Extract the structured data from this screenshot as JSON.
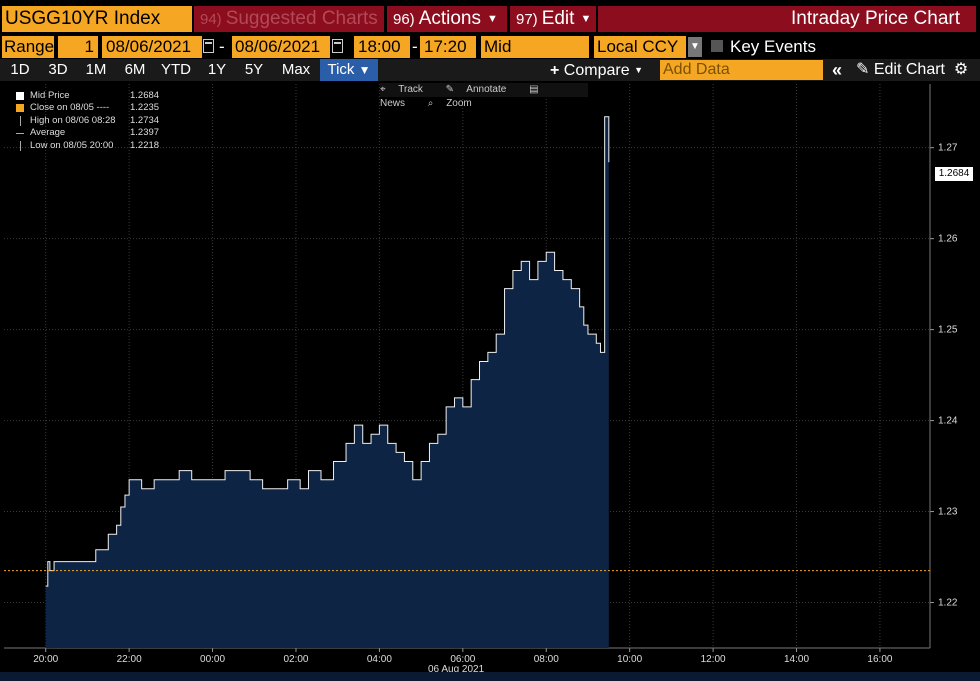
{
  "header": {
    "ticker": "USGG10YR Index",
    "tabs": [
      {
        "num": "94)",
        "label": "Suggested Charts"
      },
      {
        "num": "96)",
        "label": "Actions"
      },
      {
        "num": "97)",
        "label": "Edit"
      }
    ],
    "title": "Intraday Price Chart"
  },
  "range": {
    "label": "Range",
    "qty": "1",
    "start_date": "08/06/2021",
    "dash": "-",
    "end_date": "08/06/2021",
    "start_time": "18:00",
    "time_dash": "-",
    "end_time": "17:20",
    "price_type": "Mid",
    "currency": "Local CCY",
    "key_events": "Key Events"
  },
  "toolbar": {
    "periods": [
      "1D",
      "3D",
      "1M",
      "6M",
      "YTD",
      "1Y",
      "5Y",
      "Max"
    ],
    "active_period": "Tick",
    "active_caret": "▼",
    "compare": "Compare",
    "add_data_placeholder": "Add Data",
    "collapse": "«",
    "edit_chart": "Edit Chart",
    "settings_icon": "gear-icon"
  },
  "annotation_toolbar": [
    "Track",
    "Annotate",
    "News",
    "Zoom"
  ],
  "legend": [
    {
      "label": "Mid Price",
      "value": "1.2684",
      "symbol": "white-square"
    },
    {
      "label": "Close on 08/05 ----",
      "value": "1.2235",
      "symbol": "orange-square"
    },
    {
      "label": "High on 08/06 08:28",
      "value": "1.2734",
      "symbol": "high-marker"
    },
    {
      "label": "Average",
      "value": "1.2397",
      "symbol": "average-marker"
    },
    {
      "label": "Low on 08/05 20:00",
      "value": "1.2218",
      "symbol": "low-marker"
    }
  ],
  "current_value_box": "1.2684",
  "x_axis_date_label": "06 Aug 2021",
  "colors": {
    "accent_orange": "#f5a623",
    "header_red": "#8b0d1e",
    "active_blue": "#2b5ea8",
    "area_fill": "#0e2444",
    "close_line": "#f5a623"
  },
  "chart_data": {
    "type": "area",
    "title": "",
    "ylim": [
      1.215,
      1.277
    ],
    "y_ticks": [
      "1.22",
      "1.23",
      "1.24",
      "1.25",
      "1.26",
      "1.27"
    ],
    "y_tick_values": [
      1.22,
      1.23,
      1.24,
      1.25,
      1.26,
      1.27
    ],
    "x_ticks": [
      "20:00",
      "22:00",
      "00:00",
      "02:00",
      "04:00",
      "06:00",
      "08:00",
      "10:00",
      "12:00",
      "14:00",
      "16:00"
    ],
    "x_tick_hours": [
      0,
      2,
      4,
      6,
      8,
      10,
      12,
      14,
      16,
      18,
      20
    ],
    "x_range_hours": [
      -1,
      21.2
    ],
    "close_level": 1.2235,
    "series": [
      {
        "x_hours": [
          0.0,
          0.05,
          0.1,
          0.2,
          0.3,
          0.5,
          0.8,
          1.0,
          1.2,
          1.5,
          1.7,
          1.8,
          1.9,
          2.0,
          2.3,
          2.6,
          2.9,
          3.2,
          3.5,
          3.8,
          4.0,
          4.3,
          4.6,
          4.9,
          5.2,
          5.5,
          5.8,
          6.1,
          6.3,
          6.6,
          6.9,
          7.2,
          7.4,
          7.6,
          7.8,
          8.0,
          8.2,
          8.4,
          8.6,
          8.8,
          9.0,
          9.2,
          9.4,
          9.6,
          9.8,
          10.0,
          10.2,
          10.4,
          10.6,
          10.8,
          11.0,
          11.2,
          11.4,
          11.6,
          11.8,
          12.0,
          12.2,
          12.4,
          12.6,
          12.8,
          12.9,
          13.0,
          13.1,
          13.2,
          13.3,
          13.4,
          13.5
        ],
        "values": [
          1.2218,
          1.2245,
          1.2235,
          1.2245,
          1.2245,
          1.2245,
          1.2245,
          1.2245,
          1.2258,
          1.2275,
          1.2285,
          1.2305,
          1.2318,
          1.2335,
          1.2325,
          1.2335,
          1.2335,
          1.2345,
          1.2335,
          1.2335,
          1.2335,
          1.2345,
          1.2345,
          1.2335,
          1.2325,
          1.2325,
          1.2335,
          1.2325,
          1.2345,
          1.2335,
          1.2355,
          1.2375,
          1.2395,
          1.2375,
          1.2385,
          1.2395,
          1.2375,
          1.2365,
          1.2355,
          1.2335,
          1.2355,
          1.2375,
          1.2385,
          1.2415,
          1.2425,
          1.2415,
          1.2445,
          1.2465,
          1.2475,
          1.2495,
          1.2545,
          1.2565,
          1.2575,
          1.2555,
          1.2575,
          1.2585,
          1.2565,
          1.2555,
          1.2545,
          1.2525,
          1.2505,
          1.2495,
          1.2495,
          1.2485,
          1.2475,
          1.2734,
          1.2684
        ]
      }
    ]
  }
}
